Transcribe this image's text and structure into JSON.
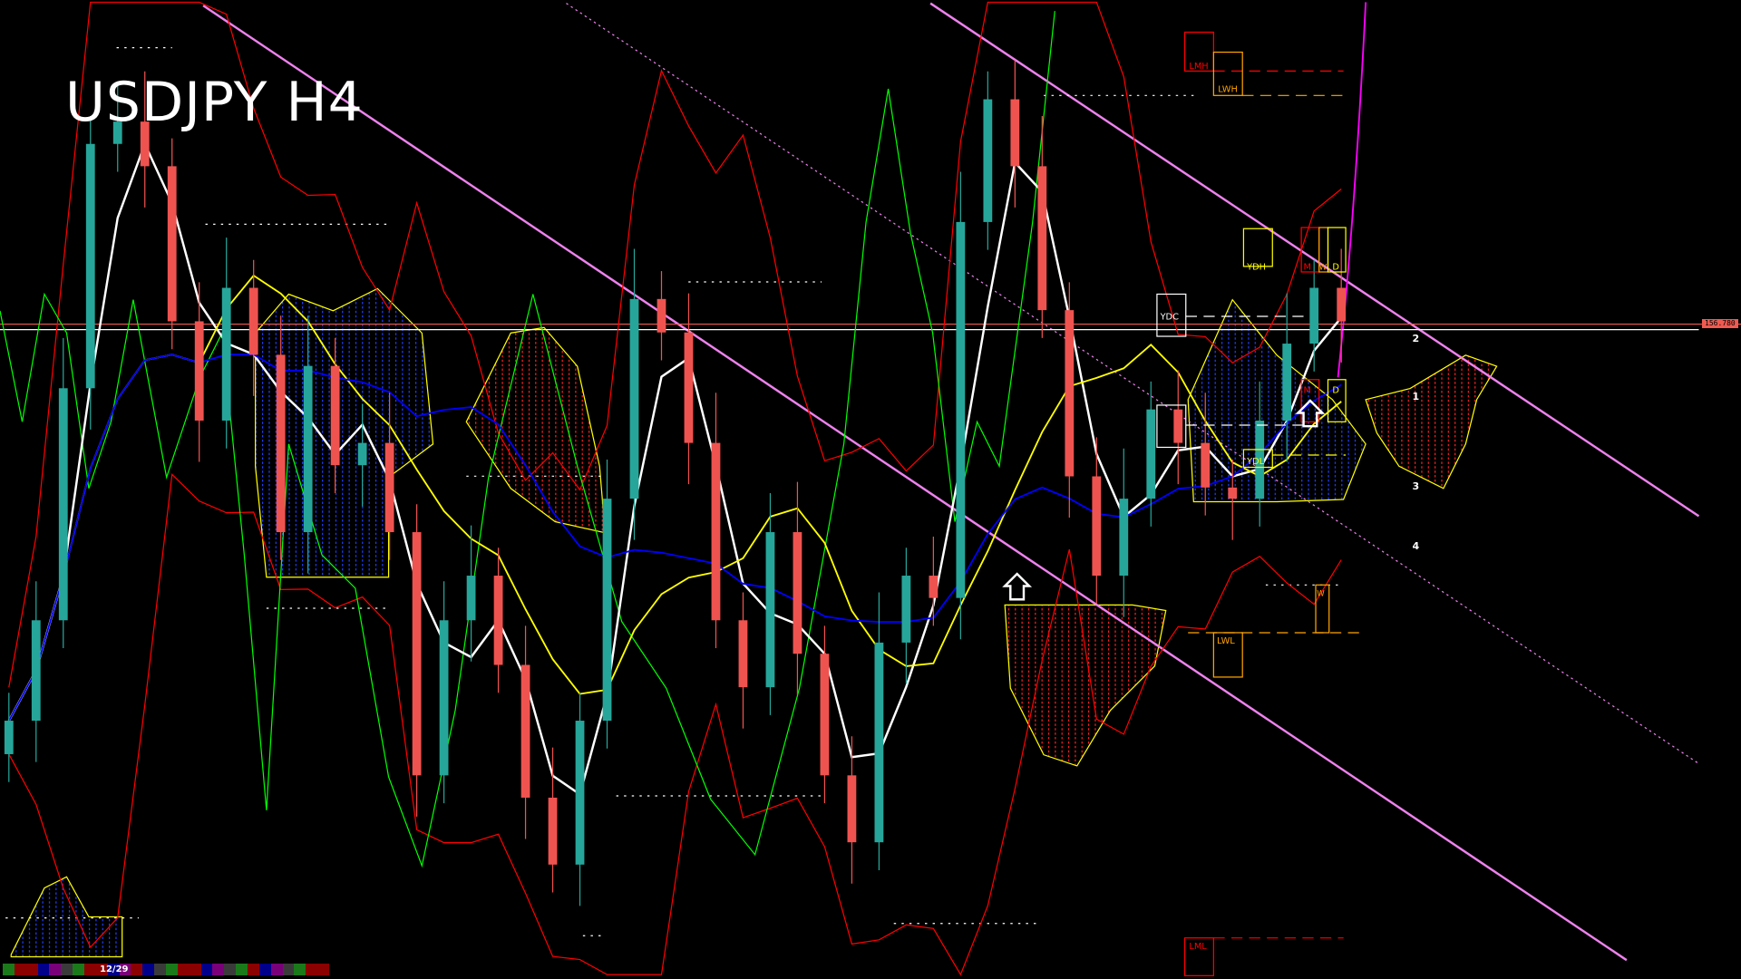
{
  "header": {
    "title": "USDJPY H4"
  },
  "price_label": "156.780",
  "timeline": {
    "date_label": "12/29",
    "segment_colors": [
      "#1a7a1a",
      "#8b0000",
      "#8b0000",
      "#00008b",
      "#7a007a",
      "#3a3a3a",
      "#1a7a1a",
      "#8b0000",
      "#8b0000",
      "#00008b",
      "#7a007a",
      "#8b0000",
      "#00008b",
      "#3a3a3a",
      "#1a7a1a",
      "#8b0000",
      "#8b0000",
      "#00008b",
      "#7a007a",
      "#3a3a3a",
      "#1a7a1a",
      "#8b0000",
      "#00008b",
      "#7a007a",
      "#3a3a3a",
      "#1a7a1a",
      "#8b0000",
      "#8b0000"
    ]
  },
  "levels": {
    "lmh": "LMH",
    "lwh": "LWH",
    "ydh": "YDH",
    "m": "M",
    "w": "W",
    "d": "D",
    "ydc": "YDC",
    "ydl": "YDL",
    "lwl": "LWL",
    "lml": "LML",
    "w2": "W",
    "m2": "M",
    "d2": "D"
  },
  "channel_labels": [
    "1",
    "2",
    "3",
    "4"
  ],
  "colors": {
    "bull": "#26a69a",
    "bear": "#ef5350",
    "trend": "#ee82ee",
    "ma_fast": "#ffffff",
    "ma_mid": "#ffff00",
    "ma_slow": "#0000ff",
    "band": "#ff0000",
    "oscillator": "#00ff00"
  },
  "chart_data": {
    "type": "candlestick",
    "symbol": "USDJPY",
    "timeframe": "H4",
    "close": [
      153.14,
      154.04,
      156.12,
      158.31,
      158.51,
      158.11,
      156.72,
      155.83,
      157.02,
      156.42,
      154.83,
      156.32,
      155.43,
      155.63,
      154.83,
      152.65,
      154.04,
      154.44,
      153.64,
      152.45,
      151.85,
      153.14,
      155.13,
      156.92,
      156.62,
      155.63,
      154.04,
      153.44,
      154.83,
      153.74,
      152.65,
      152.05,
      153.84,
      154.44,
      154.24,
      157.61,
      158.71,
      158.11,
      156.82,
      155.33,
      154.44,
      155.13,
      155.93,
      155.63,
      155.23,
      155.13,
      155.83,
      156.52,
      157.02,
      156.72
    ],
    "ylim": [
      151.0,
      159.6
    ],
    "current_price": 156.78,
    "grid": false
  }
}
